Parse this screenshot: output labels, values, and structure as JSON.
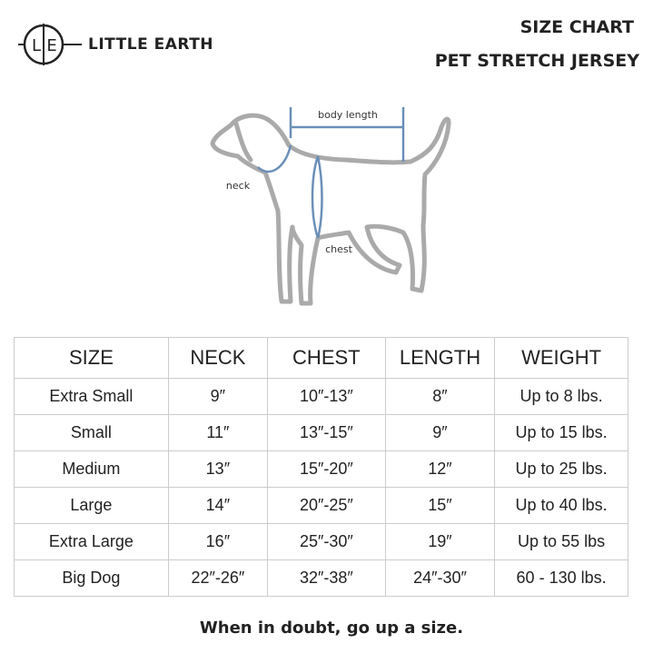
{
  "logo": {
    "left": "L",
    "right": "E"
  },
  "brand": "LITTLE EARTH",
  "header": {
    "title": "SIZE CHART",
    "subtitle": "PET STRETCH JERSEY"
  },
  "diagram": {
    "body_length": "body length",
    "neck": "neck",
    "chest": "chest"
  },
  "table": {
    "columns": [
      "SIZE",
      "NECK",
      "CHEST",
      "LENGTH",
      "WEIGHT"
    ],
    "rows": [
      [
        "Extra Small",
        "9″",
        "10″-13″",
        "8″",
        "Up to 8 lbs."
      ],
      [
        "Small",
        "11″",
        "13″-15″",
        "9″",
        "Up to 15 lbs."
      ],
      [
        "Medium",
        "13″",
        "15″-20″",
        "12″",
        "Up to 25 lbs."
      ],
      [
        "Large",
        "14″",
        "20″-25″",
        "15″",
        "Up to 40 lbs."
      ],
      [
        "Extra Large",
        "16″",
        "25″-30″",
        "19″",
        "Up to 55 lbs"
      ],
      [
        "Big Dog",
        "22″-26″",
        "32″-38″",
        "24″-30″",
        "60 - 130 lbs."
      ]
    ]
  },
  "footer": "When in doubt, go up a size."
}
